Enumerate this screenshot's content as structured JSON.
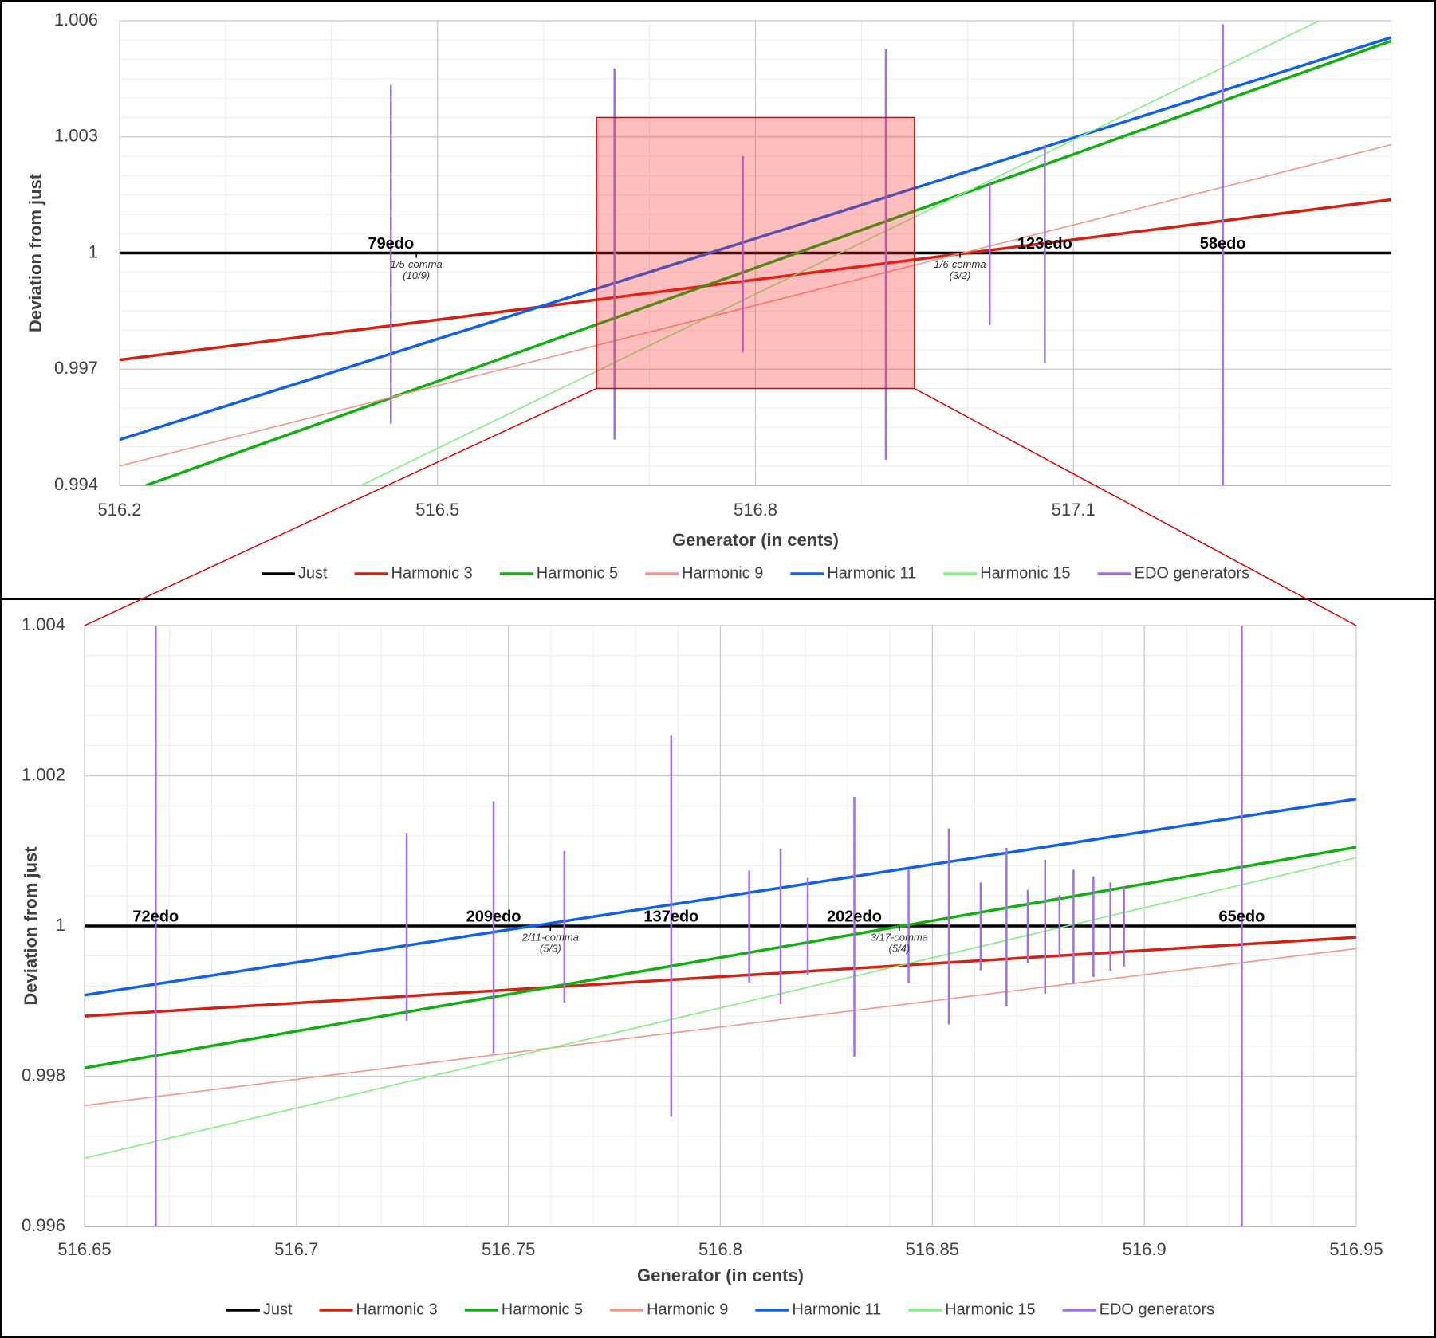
{
  "chart_data": [
    {
      "type": "line",
      "x_label": "Generator (in cents)",
      "y_label": "Deviation from just",
      "xlim": [
        516.2,
        517.4
      ],
      "ylim": [
        0.994,
        1.006
      ],
      "xticks": [
        516.2,
        516.5,
        516.8,
        517.1
      ],
      "yticks": [
        0.994,
        0.997,
        1,
        1.003,
        1.006
      ],
      "grid": true,
      "minor_divisions": {
        "x": 3,
        "y": 6
      },
      "legend": "bottom",
      "series": [
        {
          "name": "Just",
          "color": "#000000",
          "x": [
            516.2,
            517.4
          ],
          "values": [
            1,
            1
          ]
        },
        {
          "name": "Harmonic 3",
          "color": "#d42010",
          "x": [
            516.2,
            517.4
          ],
          "values": [
            0.99724,
            1.00138
          ]
        },
        {
          "name": "Harmonic 5",
          "color": "#10b010",
          "x": [
            516.225,
            517.4
          ],
          "values": [
            0.994,
            1.00548
          ]
        },
        {
          "name": "Harmonic 9",
          "color": "#f59585",
          "x": [
            516.2,
            517.4
          ],
          "values": [
            0.9945,
            1.0028
          ]
        },
        {
          "name": "Harmonic 11",
          "color": "#1060e8",
          "x": [
            516.2,
            517.4
          ],
          "values": [
            0.99518,
            1.00557
          ]
        },
        {
          "name": "Harmonic 15",
          "color": "#80f080",
          "x": [
            516.428,
            517.332
          ],
          "values": [
            0.994,
            1.006
          ]
        },
        {
          "name": "EDO generators",
          "color": "#a070e0",
          "x": [
            516.456,
            516.667,
            516.788,
            516.923,
            517.021,
            517.073,
            517.241
          ],
          "highs": [
            1.00434,
            1.00477,
            1.0025,
            1.00527,
            1.00183,
            1.0028,
            1.00591
          ],
          "lows": [
            0.99559,
            0.99518,
            0.99743,
            0.99466,
            0.99814,
            0.99715,
            0.994
          ],
          "labels": [
            "79edo",
            null,
            null,
            null,
            null,
            "123edo",
            "58edo"
          ]
        }
      ],
      "annotations": [
        {
          "x": 516.48,
          "lines": [
            "1/5-comma",
            "(10/9)"
          ]
        },
        {
          "x": 516.993,
          "lines": [
            "1/6-comma",
            "(3/2)"
          ]
        }
      ],
      "zoom_box": {
        "xlim": [
          516.65,
          516.95
        ],
        "ylim": [
          0.9965,
          1.0035
        ]
      }
    },
    {
      "type": "line",
      "x_label": "Generator (in cents)",
      "y_label": "Deviation from just",
      "xlim": [
        516.65,
        516.95
      ],
      "ylim": [
        0.996,
        1.004
      ],
      "xticks": [
        516.65,
        516.7,
        516.75,
        516.8,
        516.85,
        516.9,
        516.95
      ],
      "yticks": [
        0.996,
        0.998,
        1,
        1.002,
        1.004
      ],
      "grid": true,
      "minor_divisions": {
        "x": 5,
        "y": 5
      },
      "legend": "bottom",
      "series": [
        {
          "name": "Just",
          "color": "#000000",
          "x": [
            516.65,
            516.95
          ],
          "values": [
            1,
            1
          ]
        },
        {
          "name": "Harmonic 3",
          "color": "#d42010",
          "x": [
            516.65,
            516.95
          ],
          "values": [
            0.9988,
            0.99985
          ]
        },
        {
          "name": "Harmonic 5",
          "color": "#10b010",
          "x": [
            516.65,
            516.95
          ],
          "values": [
            0.99811,
            1.00105
          ]
        },
        {
          "name": "Harmonic 9",
          "color": "#f59585",
          "x": [
            516.65,
            516.95
          ],
          "values": [
            0.99761,
            0.9997
          ]
        },
        {
          "name": "Harmonic 11",
          "color": "#1060e8",
          "x": [
            516.65,
            516.95
          ],
          "values": [
            0.99908,
            1.00169
          ]
        },
        {
          "name": "Harmonic 15",
          "color": "#80f080",
          "x": [
            516.65,
            516.95
          ],
          "values": [
            0.99691,
            1.00091
          ]
        },
        {
          "name": "EDO generators",
          "color": "#a070e0",
          "x": [
            516.6668,
            516.726,
            516.7465,
            516.7632,
            516.7884,
            516.8068,
            516.8142,
            516.8206,
            516.8316,
            516.8444,
            516.8539,
            516.8614,
            516.8675,
            516.8725,
            516.8766,
            516.88,
            516.8833,
            516.888,
            516.892,
            516.8952,
            516.923
          ],
          "highs": [
            1.00477,
            1.00124,
            1.00166,
            1.001,
            1.00254,
            1.00074,
            1.00103,
            1.00064,
            1.00172,
            1.00075,
            1.0013,
            1.00058,
            1.00104,
            1.00048,
            1.00088,
            1.00041,
            1.00075,
            1.00066,
            1.00058,
            1.00053,
            1.00527
          ],
          "lows": [
            0.99518,
            0.99874,
            0.99831,
            0.99898,
            0.99746,
            0.99925,
            0.99896,
            0.99935,
            0.99826,
            0.99924,
            0.99869,
            0.99941,
            0.99893,
            0.99951,
            0.9991,
            0.99958,
            0.99923,
            0.99932,
            0.9994,
            0.99946,
            0.99466
          ],
          "labels": [
            "72edo",
            null,
            "209edo",
            null,
            "137edo",
            null,
            null,
            null,
            "202edo",
            null,
            null,
            null,
            null,
            null,
            null,
            null,
            null,
            null,
            null,
            null,
            "65edo"
          ]
        }
      ],
      "annotations": [
        {
          "x": 516.7599,
          "lines": [
            "2/11-comma",
            "(5/3)"
          ]
        },
        {
          "x": 516.8422,
          "lines": [
            "3/17-comma",
            "(5/4)"
          ]
        }
      ]
    }
  ]
}
